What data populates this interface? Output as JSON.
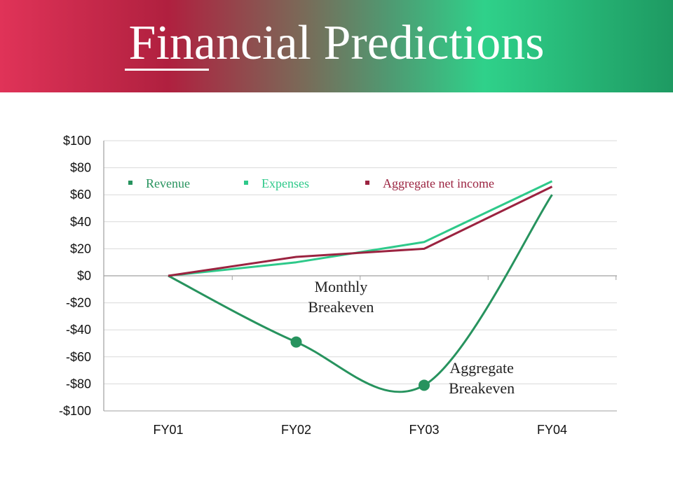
{
  "slide": {
    "title": "Financial Predictions"
  },
  "colors": {
    "revenue": "#27935e",
    "expenses": "#2ec98a",
    "net": "#9b2340",
    "grid": "#d9d9d9",
    "axis": "#a0a0a0"
  },
  "chart_data": {
    "type": "line",
    "title": "",
    "xlabel": "",
    "ylabel": "",
    "categories": [
      "FY01",
      "FY02",
      "FY03",
      "FY04"
    ],
    "y_ticks": [
      "$100",
      "$80",
      "$60",
      "$40",
      "$20",
      "$0",
      "-$20",
      "-$40",
      "-$60",
      "-$80",
      "-$100"
    ],
    "ylim": [
      -100,
      100
    ],
    "grid": true,
    "legend": "top-left inside plot",
    "series": [
      {
        "name": "Revenue",
        "values": [
          0,
          -49,
          -81,
          60
        ],
        "markers_at": [
          1,
          2
        ]
      },
      {
        "name": "Expenses",
        "values": [
          0,
          10,
          25,
          70
        ]
      },
      {
        "name": "Aggregate net income",
        "values": [
          0,
          14,
          20,
          66
        ]
      }
    ],
    "annotations": [
      {
        "text_lines": [
          "Monthly",
          "Breakeven"
        ],
        "x": 1.35,
        "y": -12
      },
      {
        "text_lines": [
          "Aggregate",
          "Breakeven"
        ],
        "x": 2.45,
        "y": -72
      }
    ]
  }
}
